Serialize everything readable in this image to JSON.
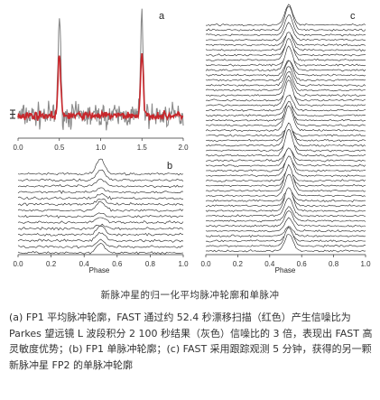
{
  "figure": {
    "title": "新脉冲星的归一化平均脉冲轮廓和单脉冲",
    "caption": "(a) FP1 平均脉冲轮廓，FAST 通过约 52.4 秒漂移扫描（红色）产生信噪比为 Parkes 望远镜 L 波段积分 2 100 秒结果（灰色）信噪比的 3 倍，表现出 FAST 高灵敏度优势；(b) FP1 单脉冲轮廓；(c) FAST 采用跟踪观测 5 分钟，获得的另一颗新脉冲星 FP2 的单脉冲轮廓",
    "colors": {
      "fast": "#c8262b",
      "parkes": "#8a8a8a",
      "trace": "#222222"
    }
  },
  "chart_data": [
    {
      "panel": "a",
      "type": "line",
      "x_range": [
        0.0,
        2.0
      ],
      "x_ticks": [
        "0.0",
        "0.5",
        "1.0",
        "1.5",
        "2.0"
      ],
      "xlabel": "",
      "series": [
        {
          "color": "#8a8a8a",
          "peak_phase": [
            0.5,
            1.5
          ],
          "peak_height": 1.0,
          "noise_level": 0.12
        },
        {
          "color": "#c8262b",
          "peak_phase": [
            0.5,
            1.5
          ],
          "peak_height": 0.62,
          "noise_level": 0.04
        }
      ],
      "error_bar_symbol": "I"
    },
    {
      "panel": "b",
      "type": "line",
      "style": "stacked single pulses",
      "x_range": [
        0.0,
        1.0
      ],
      "x_ticks": [
        "0.0",
        "0.2",
        "0.4",
        "0.6",
        "0.8",
        "1.0"
      ],
      "xlabel": "Phase",
      "n_pulses": 14,
      "pulse_phase": 0.5
    },
    {
      "panel": "c",
      "type": "line",
      "style": "stacked single pulses",
      "x_range": [
        0.0,
        1.0
      ],
      "x_ticks": [
        "0.0",
        "0.2",
        "0.4",
        "0.6",
        "0.8",
        "1.0"
      ],
      "xlabel": "Phase",
      "n_pulses": 46,
      "pulse_phase": 0.52
    }
  ]
}
